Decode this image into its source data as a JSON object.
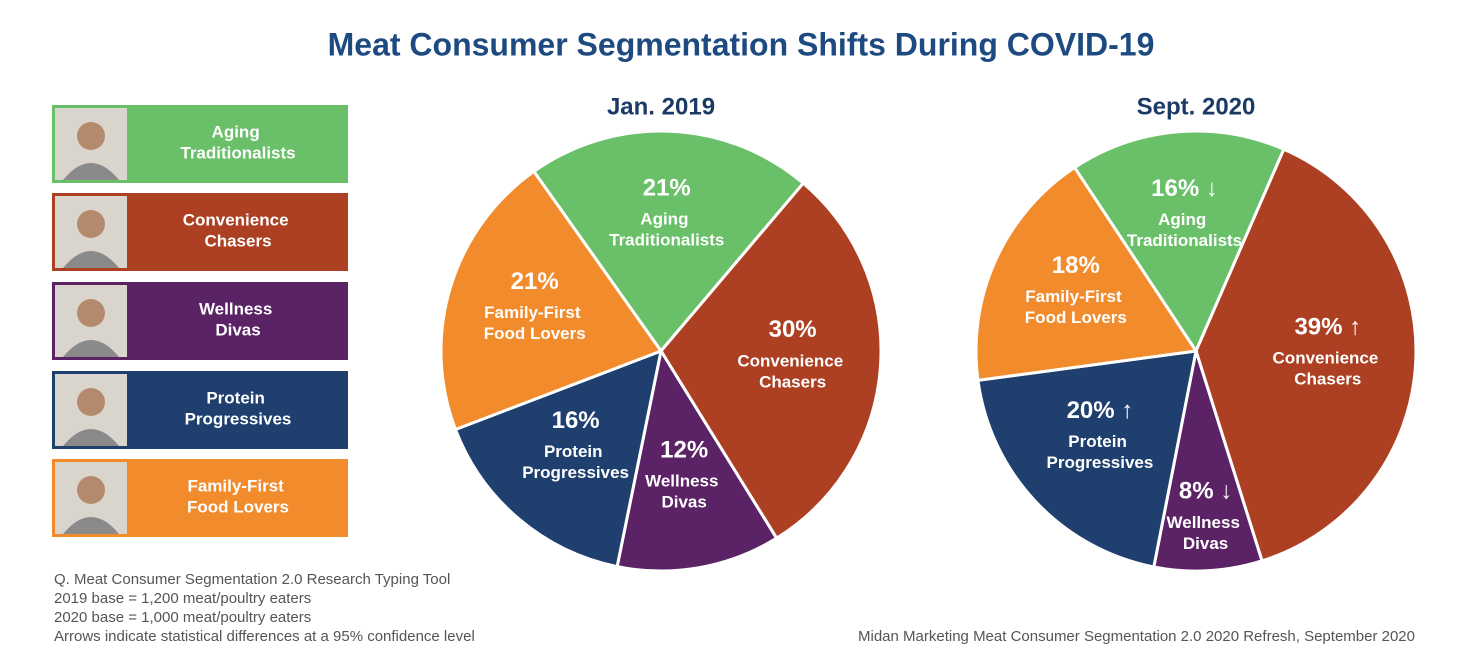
{
  "title": "Meat Consumer Segmentation Shifts During COVID-19",
  "legend": [
    {
      "label": "Aging Traditionalists",
      "color": "#6abf69"
    },
    {
      "label": "Convenience Chasers",
      "color": "#ad4023"
    },
    {
      "label": "Wellness Divas",
      "color": "#5c2266"
    },
    {
      "label": "Protein Progressives",
      "color": "#1f3f6e"
    },
    {
      "label": "Family-First Food Lovers",
      "color": "#f28b2c"
    }
  ],
  "chart_data": [
    {
      "type": "pie",
      "title": "Jan. 2019",
      "categories": [
        "Aging Traditionalists",
        "Convenience Chasers",
        "Wellness Divas",
        "Protein Progressives",
        "Family-First Food Lovers"
      ],
      "values": [
        21,
        30,
        12,
        16,
        21
      ],
      "value_labels": [
        "21%",
        "30%",
        "12%",
        "16%",
        "21%"
      ],
      "colors": [
        "#6abf69",
        "#ad4023",
        "#5c2266",
        "#1f3f6e",
        "#f28b2c"
      ]
    },
    {
      "type": "pie",
      "title": "Sept. 2020",
      "categories": [
        "Aging Traditionalists",
        "Convenience Chasers",
        "Wellness Divas",
        "Protein Progressives",
        "Family-First Food Lovers"
      ],
      "values": [
        16,
        39,
        8,
        20,
        18
      ],
      "value_labels": [
        "16% ↓",
        "39% ↑",
        "8% ↓",
        "20% ↑",
        "18%"
      ],
      "colors": [
        "#6abf69",
        "#ad4023",
        "#5c2266",
        "#1f3f6e",
        "#f28b2c"
      ]
    }
  ],
  "notes": [
    "Q. Meat Consumer Segmentation 2.0 Research Typing Tool",
    "2019 base = 1,200 meat/poultry eaters",
    "2020 base = 1,000 meat/poultry eaters",
    "Arrows indicate statistical differences at a 95% confidence level"
  ],
  "source": "Midan Marketing Meat Consumer Segmentation 2.0 2020 Refresh, September 2020"
}
